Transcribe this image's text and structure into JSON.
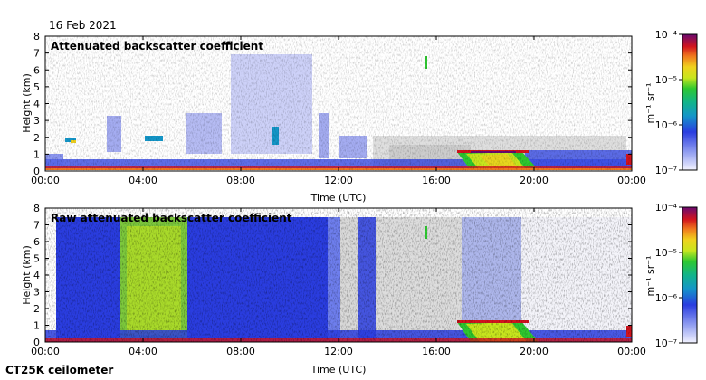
{
  "date": "16 Feb 2021",
  "footer": "CT25K ceilometer",
  "chart_data": [
    {
      "type": "heatmap",
      "title": "Attenuated backscatter coefficient",
      "xlabel": "Time (UTC)",
      "ylabel": "Height (km)",
      "x_ticks": [
        "00:00",
        "04:00",
        "08:00",
        "12:00",
        "16:00",
        "20:00",
        "00:00"
      ],
      "y_ticks": [
        "0",
        "1",
        "2",
        "3",
        "4",
        "5",
        "6",
        "7",
        "8"
      ],
      "xlim": [
        0,
        24
      ],
      "ylim": [
        0,
        8
      ],
      "colorbar": {
        "label": "m⁻¹ sr⁻¹",
        "scale": "log",
        "range": [
          1e-07,
          0.0001
        ],
        "tick_labels": [
          "10⁻⁴",
          "10⁻⁵",
          "10⁻⁶",
          "10⁻⁷"
        ]
      }
    },
    {
      "type": "heatmap",
      "title": "Raw attenuated backscatter coefficient",
      "xlabel": "Time (UTC)",
      "ylabel": "Height (km)",
      "x_ticks": [
        "00:00",
        "04:00",
        "08:00",
        "12:00",
        "16:00",
        "20:00",
        "00:00"
      ],
      "y_ticks": [
        "0",
        "1",
        "2",
        "3",
        "4",
        "5",
        "6",
        "7",
        "8"
      ],
      "xlim": [
        0,
        24
      ],
      "ylim": [
        0,
        8
      ],
      "colorbar": {
        "label": "m⁻¹ sr⁻¹",
        "scale": "log",
        "range": [
          1e-07,
          0.0001
        ],
        "tick_labels": [
          "10⁻⁴",
          "10⁻⁵",
          "10⁻⁶",
          "10⁻⁷"
        ]
      }
    }
  ]
}
